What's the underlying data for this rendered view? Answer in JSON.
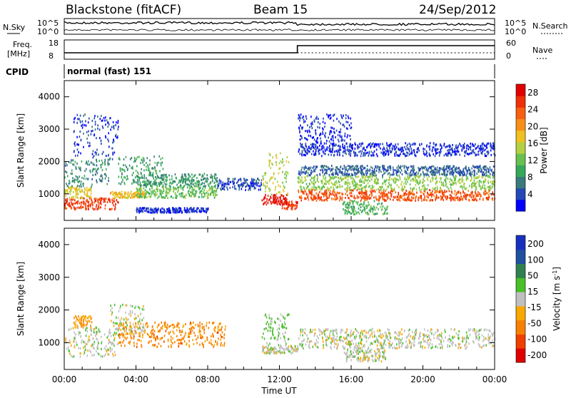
{
  "header": {
    "station": "Blackstone (fitACF)",
    "beam": "Beam 15",
    "date": "24/Sep/2012"
  },
  "noise_panel": {
    "left_label": "N.Sky",
    "right_label": "N.Search",
    "left_ticks": [
      "10^5",
      "10^0"
    ],
    "right_ticks": [
      "10^5",
      "10^0"
    ]
  },
  "freq_panel": {
    "left_label_line1": "Freq.",
    "left_label_line2": "[MHz]",
    "right_label": "Nave",
    "left_ticks": [
      "18",
      "8"
    ],
    "right_ticks": [
      "60",
      "0"
    ],
    "freq_value_mhz": 10.3,
    "switch_time_hours": 13.0
  },
  "cpid": {
    "label": "CPID",
    "value": "normal (fast) 151"
  },
  "chart_data": [
    {
      "type": "heatmap",
      "title": "Power",
      "ylabel": "Slant Range [km]",
      "xlabel": "Time UT",
      "x_ticks": [
        "00:00",
        "04:00",
        "08:00",
        "12:00",
        "16:00",
        "20:00",
        "00:00"
      ],
      "y_ticks": [
        "1000",
        "2000",
        "3000",
        "4000"
      ],
      "ylim": [
        180,
        4500
      ],
      "colorbar": {
        "label": "Power [dB]",
        "ticks": [
          "4",
          "8",
          "12",
          "16",
          "20",
          "24",
          "28"
        ],
        "range": [
          0,
          30
        ],
        "colors": [
          "#0000ff",
          "#2449b4",
          "#3a7a7a",
          "#36a85a",
          "#68c050",
          "#b4d040",
          "#f0c020",
          "#f89018",
          "#f86010",
          "#f03008",
          "#e00000"
        ]
      },
      "bands": [
        {
          "t0": 0.0,
          "t1": 3.0,
          "r0": 550,
          "r1": 900,
          "level": 0.85
        },
        {
          "t0": 0.0,
          "t1": 1.5,
          "r0": 900,
          "r1": 1250,
          "level": 0.55
        },
        {
          "t0": 0.0,
          "t1": 2.5,
          "r0": 1250,
          "r1": 2100,
          "level": 0.25
        },
        {
          "t0": 0.5,
          "t1": 3.0,
          "r0": 2100,
          "r1": 3500,
          "level": 0.12
        },
        {
          "t0": 2.5,
          "t1": 4.5,
          "r0": 900,
          "r1": 1100,
          "level": 0.6
        },
        {
          "t0": 3.0,
          "t1": 5.5,
          "r0": 1300,
          "r1": 2200,
          "level": 0.3
        },
        {
          "t0": 4.0,
          "t1": 8.5,
          "r0": 900,
          "r1": 1250,
          "level": 0.4
        },
        {
          "t0": 4.0,
          "t1": 8.5,
          "r0": 1250,
          "r1": 1650,
          "level": 0.28
        },
        {
          "t0": 8.5,
          "t1": 11.0,
          "r0": 1150,
          "r1": 1500,
          "level": 0.15
        },
        {
          "t0": 11.0,
          "t1": 12.5,
          "r0": 700,
          "r1": 1000,
          "level": 0.92
        },
        {
          "t0": 11.0,
          "t1": 12.5,
          "r0": 1000,
          "r1": 2300,
          "level": 0.5
        },
        {
          "t0": 12.0,
          "t1": 13.0,
          "r0": 550,
          "r1": 800,
          "level": 0.85
        },
        {
          "t0": 13.0,
          "t1": 24.0,
          "r0": 820,
          "r1": 1150,
          "level": 0.8
        },
        {
          "t0": 13.0,
          "t1": 24.0,
          "r0": 1150,
          "r1": 1600,
          "level": 0.45
        },
        {
          "t0": 13.0,
          "t1": 24.0,
          "r0": 1600,
          "r1": 1900,
          "level": 0.18
        },
        {
          "t0": 15.5,
          "t1": 18.0,
          "r0": 400,
          "r1": 820,
          "level": 0.35
        },
        {
          "t0": 13.0,
          "t1": 24.0,
          "r0": 2200,
          "r1": 2600,
          "level": 0.1
        },
        {
          "t0": 13.0,
          "t1": 16.0,
          "r0": 2600,
          "r1": 3500,
          "level": 0.08
        },
        {
          "t0": 4.0,
          "t1": 8.0,
          "r0": 450,
          "r1": 600,
          "level": 0.1
        }
      ]
    },
    {
      "type": "heatmap",
      "title": "Velocity",
      "ylabel": "Slant Range [km]",
      "xlabel": "Time UT",
      "x_ticks": [
        "00:00",
        "04:00",
        "08:00",
        "12:00",
        "16:00",
        "20:00",
        "00:00"
      ],
      "y_ticks": [
        "1000",
        "2000",
        "3000",
        "4000"
      ],
      "ylim": [
        180,
        4500
      ],
      "colorbar": {
        "label": "Velocity [m s^-1]",
        "ticks": [
          "200",
          "100",
          "50",
          "15",
          "-15",
          "-50",
          "-100",
          "-200"
        ],
        "range": [
          -250,
          250
        ],
        "colors": [
          "#e00000",
          "#f04000",
          "#f88000",
          "#f8a800",
          "#c0c0c0",
          "#48c028",
          "#308050",
          "#2050a0",
          "#1830c0"
        ]
      },
      "bands": [
        {
          "t0": 0.0,
          "t1": 3.0,
          "r0": 600,
          "r1": 1500,
          "level": 0.5
        },
        {
          "t0": 0.5,
          "t1": 1.5,
          "r0": 1500,
          "r1": 1850,
          "level": 0.35
        },
        {
          "t0": 2.5,
          "t1": 4.5,
          "r0": 1300,
          "r1": 2200,
          "level": 0.5
        },
        {
          "t0": 3.0,
          "t1": 9.0,
          "r0": 900,
          "r1": 1650,
          "level": 0.3
        },
        {
          "t0": 11.0,
          "t1": 12.5,
          "r0": 950,
          "r1": 1900,
          "level": 0.58
        },
        {
          "t0": 11.0,
          "t1": 13.0,
          "r0": 700,
          "r1": 950,
          "level": 0.5
        },
        {
          "t0": 13.0,
          "t1": 24.0,
          "r0": 850,
          "r1": 1450,
          "level": 0.5
        },
        {
          "t0": 15.5,
          "t1": 18.0,
          "r0": 450,
          "r1": 850,
          "level": 0.5
        }
      ]
    }
  ]
}
